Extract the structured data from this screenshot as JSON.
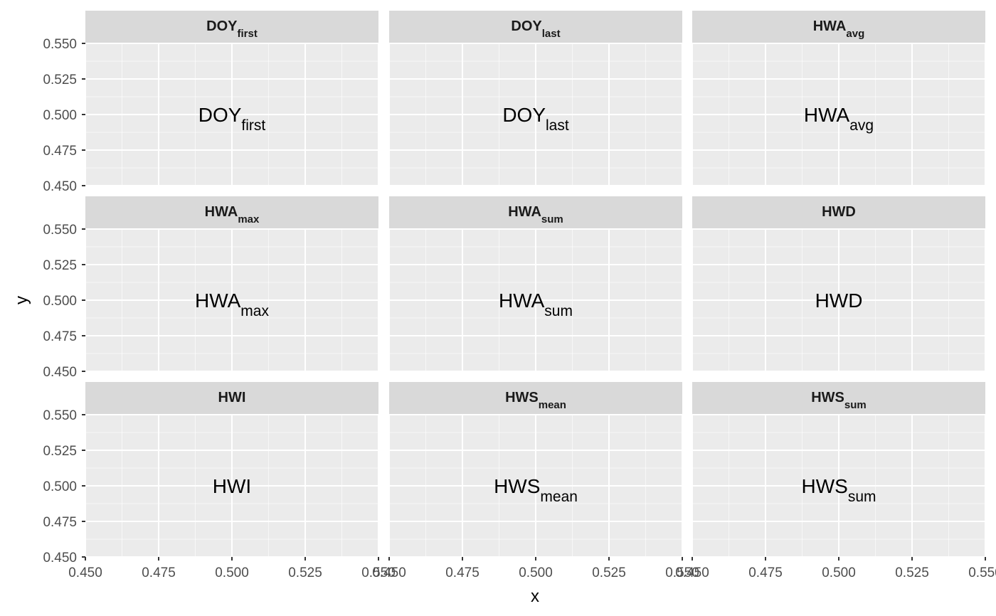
{
  "chart_data": {
    "type": "scatter",
    "xlabel": "x",
    "ylabel": "y",
    "xlim": [
      0.45,
      0.55
    ],
    "ylim": [
      0.45,
      0.55
    ],
    "x_ticks": [
      "0.450",
      "0.475",
      "0.500",
      "0.525",
      "0.550"
    ],
    "y_ticks": [
      "0.450",
      "0.475",
      "0.500",
      "0.525",
      "0.550"
    ],
    "grid": true,
    "facets": [
      {
        "strip": {
          "base": "DOY",
          "sub": "first"
        },
        "label": {
          "base": "DOY",
          "sub": "first"
        },
        "x": 0.5,
        "y": 0.5
      },
      {
        "strip": {
          "base": "DOY",
          "sub": "last"
        },
        "label": {
          "base": "DOY",
          "sub": "last"
        },
        "x": 0.5,
        "y": 0.5
      },
      {
        "strip": {
          "base": "HWA",
          "sub": "avg"
        },
        "label": {
          "base": "HWA",
          "sub": "avg"
        },
        "x": 0.5,
        "y": 0.5
      },
      {
        "strip": {
          "base": "HWA",
          "sub": "max"
        },
        "label": {
          "base": "HWA",
          "sub": "max"
        },
        "x": 0.5,
        "y": 0.5
      },
      {
        "strip": {
          "base": "HWA",
          "sub": "sum"
        },
        "label": {
          "base": "HWA",
          "sub": "sum"
        },
        "x": 0.5,
        "y": 0.5
      },
      {
        "strip": {
          "base": "HWD",
          "sub": ""
        },
        "label": {
          "base": "HWD",
          "sub": ""
        },
        "x": 0.5,
        "y": 0.5
      },
      {
        "strip": {
          "base": "HWI",
          "sub": ""
        },
        "label": {
          "base": "HWI",
          "sub": ""
        },
        "x": 0.5,
        "y": 0.5
      },
      {
        "strip": {
          "base": "HWS",
          "sub": "mean"
        },
        "label": {
          "base": "HWS",
          "sub": "mean"
        },
        "x": 0.5,
        "y": 0.5
      },
      {
        "strip": {
          "base": "HWS",
          "sub": "sum"
        },
        "label": {
          "base": "HWS",
          "sub": "sum"
        },
        "x": 0.5,
        "y": 0.5
      }
    ],
    "colors": {
      "panel_background": "#ebebeb",
      "strip_background": "#d9d9d9",
      "grid_major": "#ffffff",
      "tick_text": "#4d4d4d",
      "axis_line": "#333333"
    }
  }
}
